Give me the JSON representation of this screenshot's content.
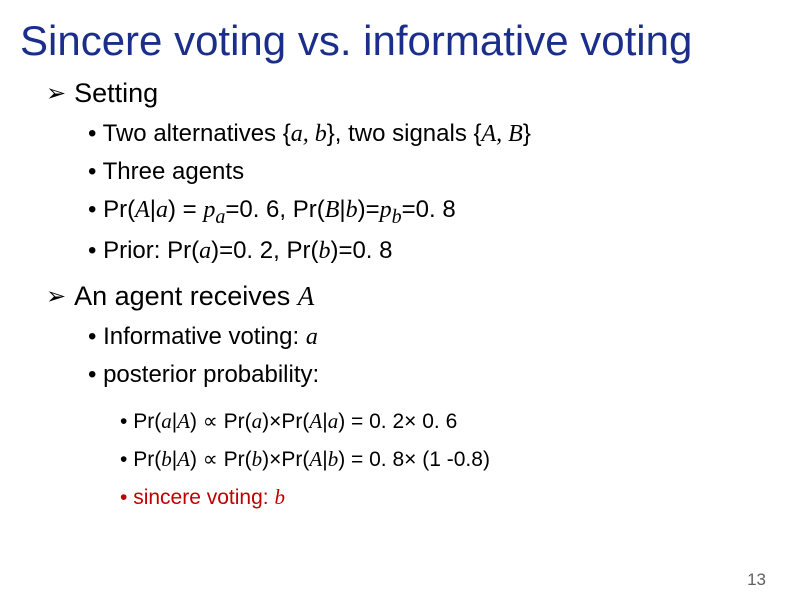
{
  "title": "Sincere voting vs. informative voting",
  "section1": {
    "heading": "Setting",
    "items": {
      "i0": {
        "pre": "Two alternatives {",
        "ab": "a, b",
        "mid": "}, two signals {",
        "AB": "A, B",
        "post": "}"
      },
      "i1": "Three agents",
      "i2": {
        "a": "Pr(",
        "b": "A",
        "c": "|",
        "d": "a",
        "e": ") = ",
        "f": "p",
        "g": "a",
        "h": "=0. 6, Pr(",
        "i": "B",
        "j": "|",
        "k": "b",
        "l": ")=",
        "m": "p",
        "n": "b",
        "o": "=0. 8"
      },
      "i3": {
        "a": "Prior: Pr(",
        "b": "a",
        "c": ")=0. 2, Pr(",
        "d": "b",
        "e": ")=0. 8"
      }
    }
  },
  "section2": {
    "heading_pre": "An agent receives ",
    "heading_it": "A",
    "items": {
      "i0": {
        "a": "Informative voting: ",
        "b": "a"
      },
      "i1": "posterior probability:"
    },
    "sub": {
      "s0": {
        "a": "Pr(",
        "b": "a",
        "c": "|",
        "d": "A",
        "e": ") ∝ Pr(",
        "f": "a",
        "g": ")×Pr(",
        "h": "A",
        "i": "|",
        "j": "a",
        "k": ") = 0. 2× 0. 6"
      },
      "s1": {
        "a": "Pr(",
        "b": "b",
        "c": "|",
        "d": "A",
        "e": ") ∝ Pr(",
        "f": "b",
        "g": ")×Pr(",
        "h": "A",
        "i": "|",
        "j": "b",
        "k": ") = 0. 8× (1 -0.8)"
      },
      "s2": {
        "a": "sincere voting: ",
        "b": "b"
      }
    }
  },
  "page_number": "13",
  "colors": {
    "title": "#1b2e8a",
    "red": "#c00000",
    "text": "#000000"
  }
}
